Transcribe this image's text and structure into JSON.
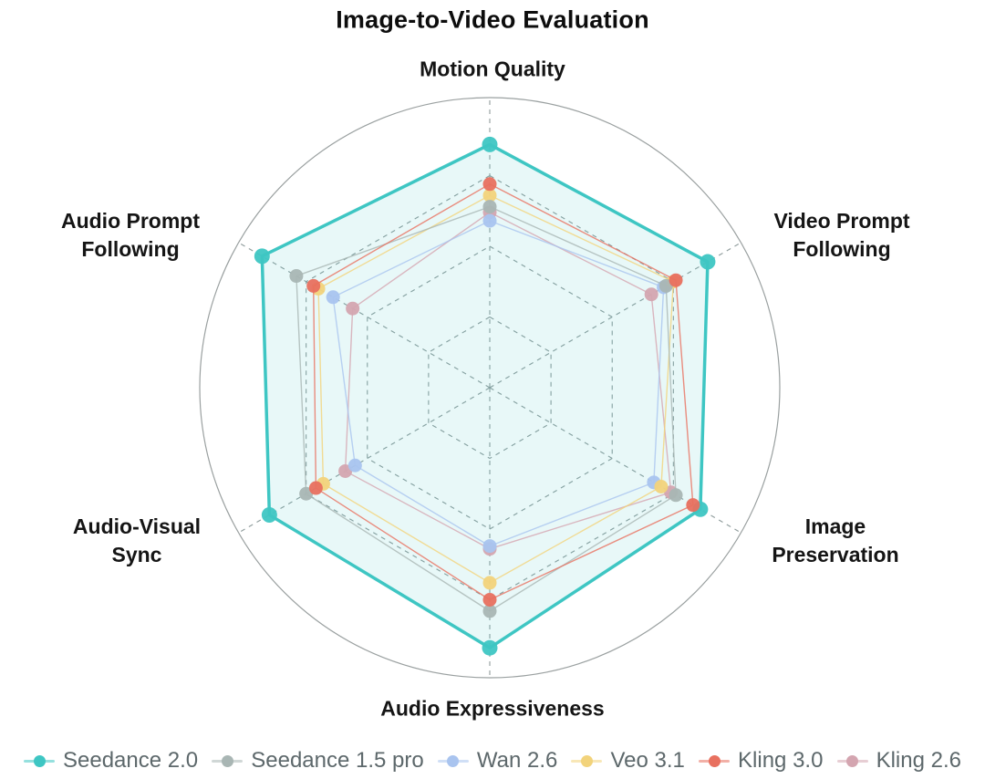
{
  "title": "Image-to-Video Evaluation",
  "chart_data": {
    "type": "radar",
    "title": "Image-to-Video Evaluation",
    "axes": [
      "Motion Quality",
      "Video Prompt Following",
      "Image Preservation",
      "Audio Expressiveness",
      "Audio-Visual Sync",
      "Audio Prompt Following"
    ],
    "scale": {
      "min": 0,
      "max": 1.0,
      "rings": [
        0.25,
        0.5,
        0.75
      ],
      "grid_style": "dashed",
      "outer_circle": true
    },
    "legend_position": "bottom",
    "series": [
      {
        "name": "Seedance 2.0",
        "color": "#3EC6C3",
        "fill": true,
        "values": [
          0.86,
          0.89,
          0.86,
          0.92,
          0.9,
          0.93
        ]
      },
      {
        "name": "Seedance 1.5 pro",
        "color": "#A9B6B4",
        "fill": false,
        "values": [
          0.64,
          0.72,
          0.76,
          0.79,
          0.75,
          0.79
        ]
      },
      {
        "name": "Wan 2.6",
        "color": "#A9C4EF",
        "fill": false,
        "values": [
          0.59,
          0.71,
          0.67,
          0.56,
          0.55,
          0.64
        ]
      },
      {
        "name": "Veo 3.1",
        "color": "#F2D37B",
        "fill": false,
        "values": [
          0.68,
          0.75,
          0.7,
          0.69,
          0.68,
          0.7
        ]
      },
      {
        "name": "Kling 3.0",
        "color": "#E8705F",
        "fill": false,
        "values": [
          0.72,
          0.76,
          0.83,
          0.75,
          0.71,
          0.72
        ]
      },
      {
        "name": "Kling 2.6",
        "color": "#D4A5B0",
        "fill": false,
        "values": [
          0.62,
          0.66,
          0.74,
          0.57,
          0.59,
          0.56
        ]
      }
    ],
    "draw_order": [
      0,
      5,
      2,
      3,
      1,
      4
    ],
    "grid_color": "#8f9c9c",
    "circle_color": "#9aa0a0"
  }
}
